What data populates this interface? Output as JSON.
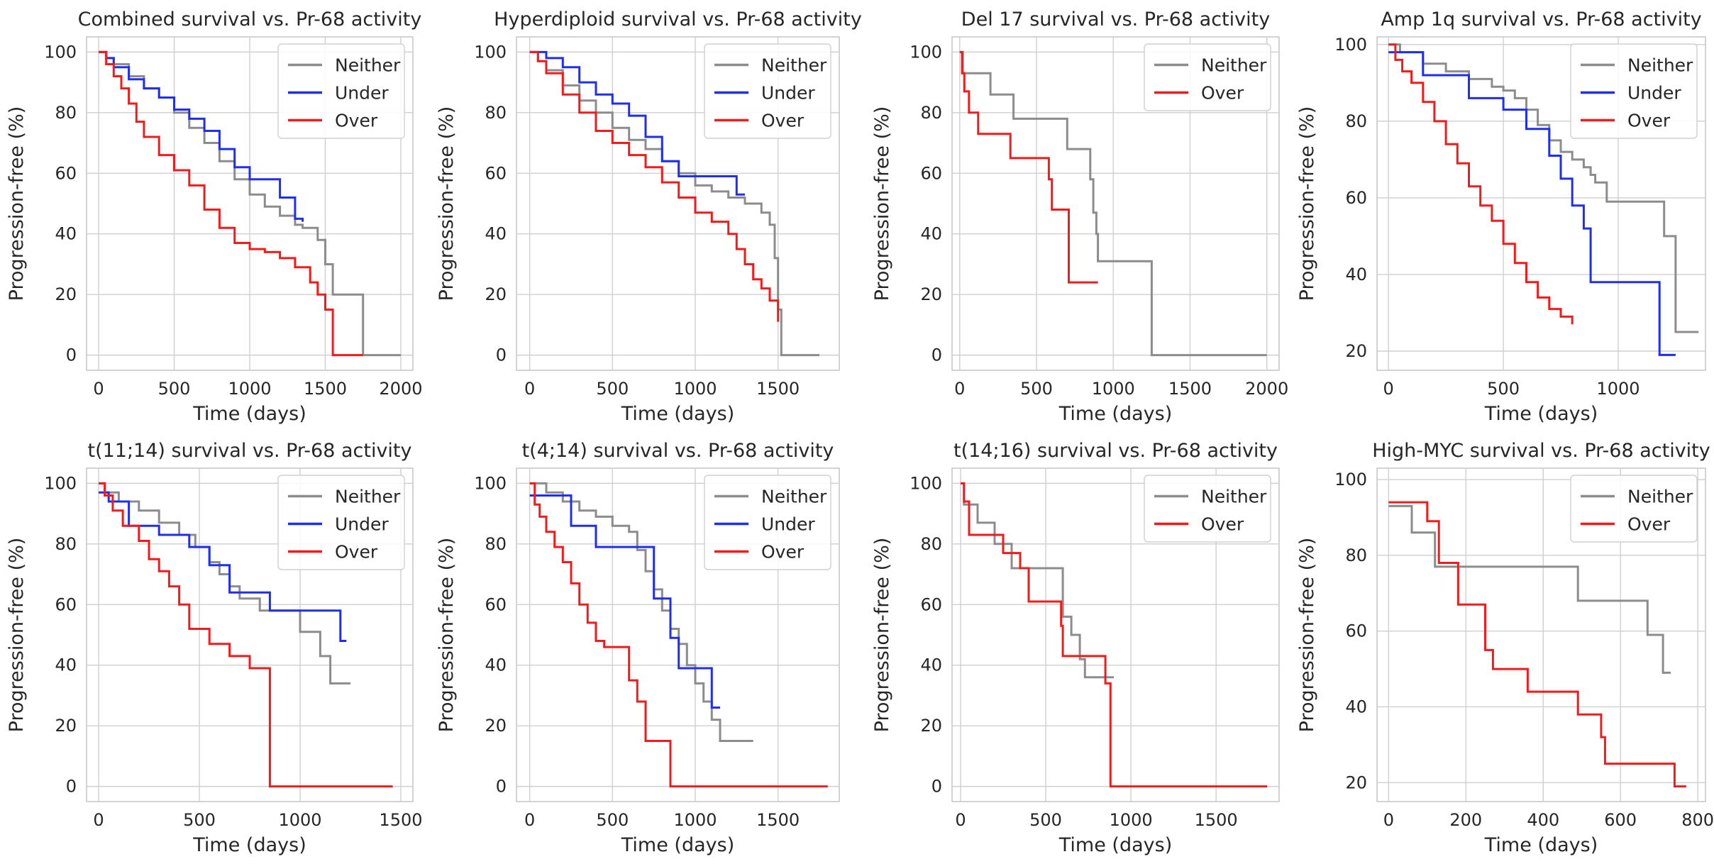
{
  "colors": {
    "Neither": "#8c8c8c",
    "Under": "#1f2ef0",
    "Over": "#f21b1b"
  },
  "chart_data": [
    {
      "type": "line",
      "step": true,
      "title": "Combined survival vs. Pr-68 activity",
      "xlabel": "Time (days)",
      "ylabel": "Progression-free (%)",
      "xlim": [
        -80,
        2080
      ],
      "ylim": [
        -5,
        105
      ],
      "xticks": [
        0,
        500,
        1000,
        1500,
        2000
      ],
      "yticks": [
        0,
        20,
        40,
        60,
        80,
        100
      ],
      "legend": [
        "Neither",
        "Under",
        "Over"
      ],
      "legend_loc": "top-right",
      "series": [
        {
          "name": "Neither",
          "x": [
            0,
            50,
            100,
            200,
            300,
            400,
            500,
            600,
            700,
            800,
            900,
            1000,
            1100,
            1200,
            1300,
            1350,
            1450,
            1500,
            1550,
            1750,
            2000
          ],
          "y": [
            100,
            98,
            96,
            92,
            88,
            85,
            80,
            75,
            70,
            64,
            58,
            53,
            49,
            46,
            43,
            42,
            38,
            30,
            20,
            0,
            0
          ]
        },
        {
          "name": "Under",
          "x": [
            0,
            50,
            100,
            200,
            300,
            400,
            500,
            600,
            700,
            800,
            900,
            1000,
            1100,
            1200,
            1300,
            1350
          ],
          "y": [
            100,
            98,
            95,
            91,
            88,
            85,
            81,
            78,
            74,
            68,
            62,
            58,
            58,
            52,
            45,
            44
          ]
        },
        {
          "name": "Over",
          "x": [
            0,
            50,
            100,
            150,
            200,
            250,
            300,
            400,
            500,
            600,
            700,
            800,
            900,
            1000,
            1100,
            1200,
            1300,
            1400,
            1450,
            1500,
            1550,
            1750
          ],
          "y": [
            100,
            96,
            92,
            88,
            83,
            77,
            72,
            66,
            61,
            56,
            48,
            42,
            37,
            35,
            34,
            32,
            29,
            24,
            20,
            15,
            0,
            0
          ]
        }
      ]
    },
    {
      "type": "line",
      "step": true,
      "title": "Hyperdiploid survival vs. Pr-68 activity",
      "xlabel": "Time (days)",
      "ylabel": "Progression-free (%)",
      "xlim": [
        -80,
        1870
      ],
      "ylim": [
        -5,
        105
      ],
      "xticks": [
        0,
        500,
        1000,
        1500
      ],
      "yticks": [
        0,
        20,
        40,
        60,
        80,
        100
      ],
      "legend": [
        "Neither",
        "Under",
        "Over"
      ],
      "legend_loc": "top-right",
      "series": [
        {
          "name": "Neither",
          "x": [
            0,
            50,
            100,
            200,
            300,
            400,
            500,
            600,
            700,
            800,
            900,
            1000,
            1100,
            1200,
            1300,
            1400,
            1450,
            1480,
            1500,
            1520,
            1750
          ],
          "y": [
            100,
            97,
            94,
            89,
            84,
            80,
            75,
            71,
            68,
            64,
            60,
            56,
            54,
            52,
            50,
            47,
            43,
            32,
            15,
            0,
            0
          ]
        },
        {
          "name": "Under",
          "x": [
            0,
            100,
            200,
            300,
            400,
            500,
            600,
            700,
            800,
            900,
            1000,
            1100,
            1200,
            1250,
            1300
          ],
          "y": [
            100,
            98,
            95,
            90,
            86,
            83,
            79,
            72,
            64,
            59,
            59,
            59,
            59,
            53,
            53
          ]
        },
        {
          "name": "Over",
          "x": [
            0,
            50,
            100,
            200,
            300,
            400,
            500,
            600,
            700,
            800,
            900,
            1000,
            1100,
            1200,
            1250,
            1300,
            1350,
            1400,
            1450,
            1500
          ],
          "y": [
            100,
            97,
            93,
            86,
            80,
            74,
            70,
            66,
            62,
            57,
            52,
            47,
            44,
            40,
            35,
            30,
            25,
            22,
            18,
            11
          ]
        }
      ]
    },
    {
      "type": "line",
      "step": true,
      "title": "Del 17 survival vs. Pr-68 activity",
      "xlabel": "Time (days)",
      "ylabel": "Progression-free (%)",
      "xlim": [
        -50,
        2080
      ],
      "ylim": [
        -5,
        105
      ],
      "xticks": [
        0,
        500,
        1000,
        1500,
        2000
      ],
      "yticks": [
        0,
        20,
        40,
        60,
        80,
        100
      ],
      "legend": [
        "Neither",
        "Over"
      ],
      "legend_loc": "top-right",
      "series": [
        {
          "name": "Neither",
          "x": [
            0,
            20,
            200,
            350,
            700,
            850,
            870,
            890,
            900,
            1250,
            2000
          ],
          "y": [
            100,
            93,
            86,
            78,
            68,
            58,
            47,
            40,
            31,
            0,
            0
          ]
        },
        {
          "name": "Over",
          "x": [
            0,
            15,
            30,
            60,
            120,
            330,
            580,
            600,
            710,
            900
          ],
          "y": [
            100,
            93,
            87,
            80,
            73,
            65,
            58,
            48,
            24,
            24
          ]
        }
      ]
    },
    {
      "type": "line",
      "step": true,
      "title": "Amp 1q survival vs. Pr-68 activity",
      "xlabel": "Time (days)",
      "ylabel": "Progression-free (%)",
      "xlim": [
        -50,
        1380
      ],
      "ylim": [
        15,
        102
      ],
      "xticks": [
        0,
        500,
        1000
      ],
      "yticks": [
        20,
        40,
        60,
        80,
        100
      ],
      "legend": [
        "Neither",
        "Under",
        "Over"
      ],
      "legend_loc": "top-right",
      "series": [
        {
          "name": "Neither",
          "x": [
            0,
            50,
            150,
            250,
            350,
            450,
            500,
            550,
            600,
            650,
            700,
            750,
            800,
            850,
            880,
            900,
            950,
            1200,
            1250,
            1350
          ],
          "y": [
            100,
            98,
            95,
            93,
            91,
            89,
            88,
            86,
            83,
            79,
            75,
            72,
            70,
            68,
            66,
            64,
            59,
            50,
            25,
            25
          ]
        },
        {
          "name": "Under",
          "x": [
            0,
            150,
            350,
            500,
            600,
            700,
            750,
            800,
            850,
            880,
            1180,
            1250
          ],
          "y": [
            98,
            92,
            86,
            83,
            78,
            71,
            65,
            58,
            52,
            38,
            19,
            19
          ]
        },
        {
          "name": "Over",
          "x": [
            0,
            30,
            60,
            100,
            150,
            200,
            250,
            300,
            350,
            400,
            450,
            500,
            550,
            600,
            650,
            700,
            750,
            800
          ],
          "y": [
            100,
            96,
            93,
            90,
            85,
            80,
            74,
            69,
            63,
            58,
            54,
            48,
            43,
            38,
            34,
            31,
            29,
            27
          ]
        }
      ]
    },
    {
      "type": "line",
      "step": true,
      "title": "t(11;14) survival vs. Pr-68 activity",
      "xlabel": "Time (days)",
      "ylabel": "Progression-free (%)",
      "xlim": [
        -60,
        1560
      ],
      "ylim": [
        -5,
        105
      ],
      "xticks": [
        0,
        500,
        1000,
        1500
      ],
      "yticks": [
        0,
        20,
        40,
        60,
        80,
        100
      ],
      "legend": [
        "Neither",
        "Under",
        "Over"
      ],
      "legend_loc": "top-right",
      "series": [
        {
          "name": "Neither",
          "x": [
            0,
            30,
            100,
            200,
            300,
            400,
            480,
            550,
            600,
            650,
            700,
            800,
            850,
            1000,
            1050,
            1100,
            1150,
            1250
          ],
          "y": [
            100,
            97,
            94,
            91,
            87,
            83,
            79,
            74,
            70,
            66,
            62,
            58,
            58,
            51,
            51,
            43,
            34,
            34
          ]
        },
        {
          "name": "Under",
          "x": [
            0,
            50,
            150,
            300,
            450,
            550,
            650,
            850,
            1200,
            1230
          ],
          "y": [
            97,
            94,
            86,
            83,
            79,
            73,
            64,
            58,
            48,
            48
          ]
        },
        {
          "name": "Over",
          "x": [
            0,
            30,
            70,
            120,
            200,
            250,
            300,
            350,
            400,
            450,
            550,
            650,
            750,
            850,
            1000,
            1460
          ],
          "y": [
            100,
            96,
            91,
            86,
            81,
            75,
            71,
            66,
            60,
            52,
            47,
            43,
            39,
            0,
            0,
            0
          ]
        }
      ]
    },
    {
      "type": "line",
      "step": true,
      "title": "t(4;14) survival vs. Pr-68 activity",
      "xlabel": "Time (days)",
      "ylabel": "Progression-free (%)",
      "xlim": [
        -80,
        1870
      ],
      "ylim": [
        -5,
        105
      ],
      "xticks": [
        0,
        500,
        1000,
        1500
      ],
      "yticks": [
        0,
        20,
        40,
        60,
        80,
        100
      ],
      "legend": [
        "Neither",
        "Under",
        "Over"
      ],
      "legend_loc": "top-right",
      "series": [
        {
          "name": "Neither",
          "x": [
            0,
            100,
            200,
            300,
            400,
            500,
            600,
            650,
            700,
            750,
            800,
            850,
            900,
            950,
            1000,
            1050,
            1100,
            1150,
            1350
          ],
          "y": [
            100,
            97,
            94,
            91,
            89,
            86,
            84,
            78,
            71,
            65,
            58,
            52,
            47,
            40,
            34,
            28,
            22,
            15,
            15
          ]
        },
        {
          "name": "Under",
          "x": [
            0,
            100,
            250,
            400,
            600,
            750,
            850,
            900,
            1100,
            1150
          ],
          "y": [
            96,
            96,
            86,
            79,
            79,
            62,
            49,
            39,
            26,
            26
          ]
        },
        {
          "name": "Over",
          "x": [
            0,
            30,
            60,
            100,
            150,
            200,
            250,
            300,
            350,
            400,
            450,
            600,
            650,
            700,
            850,
            1000,
            1800
          ],
          "y": [
            100,
            93,
            89,
            84,
            79,
            74,
            67,
            60,
            54,
            48,
            46,
            35,
            28,
            15,
            0,
            0,
            0
          ]
        }
      ]
    },
    {
      "type": "line",
      "step": true,
      "title": "t(14;16) survival vs. Pr-68 activity",
      "xlabel": "Time (days)",
      "ylabel": "Progression-free (%)",
      "xlim": [
        -50,
        1870
      ],
      "ylim": [
        -5,
        105
      ],
      "xticks": [
        0,
        500,
        1000,
        1500
      ],
      "yticks": [
        0,
        20,
        40,
        60,
        80,
        100
      ],
      "legend": [
        "Neither",
        "Over"
      ],
      "legend_loc": "top-right",
      "series": [
        {
          "name": "Neither",
          "x": [
            0,
            20,
            100,
            200,
            300,
            400,
            600,
            650,
            700,
            730,
            900
          ],
          "y": [
            100,
            93,
            87,
            80,
            72,
            72,
            56,
            50,
            42,
            36,
            36
          ]
        },
        {
          "name": "Over",
          "x": [
            0,
            20,
            50,
            250,
            350,
            400,
            590,
            600,
            850,
            880,
            1800
          ],
          "y": [
            100,
            94,
            83,
            77,
            72,
            61,
            53,
            43,
            34,
            0,
            0
          ]
        }
      ]
    },
    {
      "type": "line",
      "step": true,
      "title": "High-MYC survival vs. Pr-68 activity",
      "xlabel": "Time (days)",
      "ylabel": "Progression-free (%)",
      "xlim": [
        -30,
        820
      ],
      "ylim": [
        15,
        103
      ],
      "xticks": [
        0,
        200,
        400,
        600,
        800
      ],
      "yticks": [
        20,
        40,
        60,
        80,
        100
      ],
      "legend": [
        "Neither",
        "Over"
      ],
      "legend_loc": "top-right",
      "series": [
        {
          "name": "Neither",
          "x": [
            0,
            60,
            120,
            490,
            670,
            710,
            730
          ],
          "y": [
            93,
            86,
            77,
            68,
            59,
            49,
            49
          ]
        },
        {
          "name": "Over",
          "x": [
            0,
            100,
            130,
            180,
            250,
            270,
            360,
            490,
            550,
            560,
            740,
            770
          ],
          "y": [
            94,
            89,
            78,
            67,
            55,
            50,
            44,
            38,
            32,
            25,
            19,
            19
          ]
        }
      ]
    }
  ]
}
